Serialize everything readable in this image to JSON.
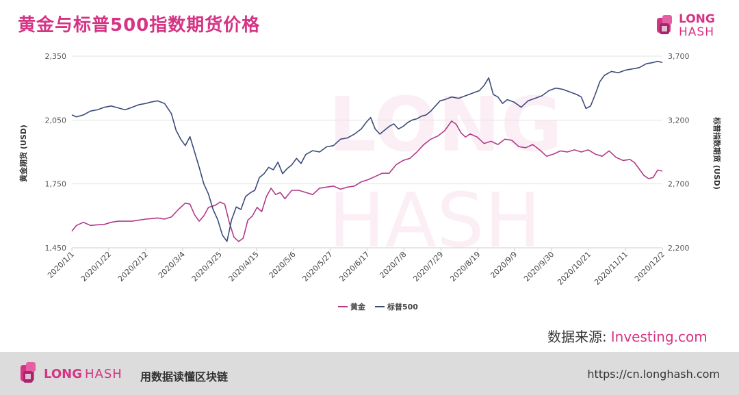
{
  "header": {
    "title": "黄金与标普500指数期货价格"
  },
  "brand": {
    "long": "LONG",
    "hash": "HASH",
    "tagline": "用数据读懂区块链",
    "url": "https://cn.longhash.com",
    "color": "#d63384"
  },
  "source": {
    "label": "数据来源:",
    "site": "Investing.com"
  },
  "chart_data": {
    "type": "line",
    "ylabel_left": "黄金期货 (USD)",
    "ylabel_right": "标普指数期货 (USD)",
    "y_left": {
      "ticks": [
        "1,450",
        "1,750",
        "2,050",
        "2,350"
      ],
      "lim": [
        1450,
        2350
      ]
    },
    "y_right": {
      "ticks": [
        "2,200",
        "2,700",
        "3,200",
        "3,700"
      ],
      "lim": [
        2200,
        3700
      ]
    },
    "x_ticks": [
      "2020/1/1",
      "2020/1/22",
      "2020/2/12",
      "2020/3/4",
      "2020/3/25",
      "2020/4/15",
      "2020/5/6",
      "2020/5/27",
      "2020/6/17",
      "2020/7/8",
      "2020/7/29",
      "2020/8/19",
      "2020/9/9",
      "2020/9/30",
      "2020/10/21",
      "2020/11/11",
      "2020/12/2"
    ],
    "legend_position": "bottom",
    "grid": true,
    "series": [
      {
        "name": "黄金",
        "axis": "left",
        "color": "#b03a88",
        "points": [
          [
            0,
            1528
          ],
          [
            2,
            1555
          ],
          [
            5,
            1570
          ],
          [
            8,
            1555
          ],
          [
            11,
            1558
          ],
          [
            14,
            1560
          ],
          [
            17,
            1570
          ],
          [
            20,
            1575
          ],
          [
            23,
            1575
          ],
          [
            26,
            1575
          ],
          [
            29,
            1580
          ],
          [
            32,
            1585
          ],
          [
            34,
            1587
          ],
          [
            37,
            1590
          ],
          [
            40,
            1585
          ],
          [
            43,
            1595
          ],
          [
            46,
            1630
          ],
          [
            49,
            1660
          ],
          [
            51,
            1655
          ],
          [
            53,
            1605
          ],
          [
            55,
            1575
          ],
          [
            57,
            1600
          ],
          [
            59,
            1640
          ],
          [
            62,
            1650
          ],
          [
            64,
            1665
          ],
          [
            66,
            1655
          ],
          [
            68,
            1570
          ],
          [
            70,
            1500
          ],
          [
            72,
            1480
          ],
          [
            74,
            1495
          ],
          [
            76,
            1580
          ],
          [
            78,
            1600
          ],
          [
            80,
            1640
          ],
          [
            82,
            1620
          ],
          [
            84,
            1690
          ],
          [
            86,
            1730
          ],
          [
            88,
            1700
          ],
          [
            90,
            1710
          ],
          [
            92,
            1680
          ],
          [
            95,
            1720
          ],
          [
            98,
            1720
          ],
          [
            101,
            1710
          ],
          [
            104,
            1700
          ],
          [
            107,
            1730
          ],
          [
            110,
            1735
          ],
          [
            113,
            1740
          ],
          [
            116,
            1725
          ],
          [
            119,
            1735
          ],
          [
            122,
            1740
          ],
          [
            125,
            1760
          ],
          [
            128,
            1770
          ],
          [
            131,
            1785
          ],
          [
            134,
            1800
          ],
          [
            137,
            1800
          ],
          [
            140,
            1840
          ],
          [
            143,
            1860
          ],
          [
            146,
            1870
          ],
          [
            149,
            1900
          ],
          [
            152,
            1935
          ],
          [
            155,
            1960
          ],
          [
            158,
            1975
          ],
          [
            161,
            2000
          ],
          [
            164,
            2045
          ],
          [
            166,
            2030
          ],
          [
            168,
            1990
          ],
          [
            170,
            1970
          ],
          [
            172,
            1985
          ],
          [
            175,
            1970
          ],
          [
            178,
            1940
          ],
          [
            181,
            1950
          ],
          [
            184,
            1935
          ],
          [
            187,
            1960
          ],
          [
            190,
            1955
          ],
          [
            193,
            1925
          ],
          [
            196,
            1920
          ],
          [
            199,
            1935
          ],
          [
            202,
            1910
          ],
          [
            205,
            1880
          ],
          [
            208,
            1890
          ],
          [
            211,
            1905
          ],
          [
            214,
            1900
          ],
          [
            217,
            1910
          ],
          [
            220,
            1900
          ],
          [
            223,
            1910
          ],
          [
            226,
            1890
          ],
          [
            229,
            1880
          ],
          [
            232,
            1905
          ],
          [
            235,
            1875
          ],
          [
            238,
            1860
          ],
          [
            241,
            1865
          ],
          [
            243,
            1850
          ],
          [
            245,
            1820
          ],
          [
            247,
            1790
          ],
          [
            249,
            1775
          ],
          [
            251,
            1780
          ],
          [
            253,
            1815
          ],
          [
            255,
            1810
          ]
        ]
      },
      {
        "name": "标普500",
        "axis": "right",
        "color": "#3b4a7a",
        "points": [
          [
            0,
            3240
          ],
          [
            2,
            3225
          ],
          [
            5,
            3240
          ],
          [
            8,
            3270
          ],
          [
            11,
            3280
          ],
          [
            14,
            3300
          ],
          [
            17,
            3310
          ],
          [
            20,
            3295
          ],
          [
            23,
            3280
          ],
          [
            26,
            3300
          ],
          [
            29,
            3320
          ],
          [
            32,
            3330
          ],
          [
            34,
            3340
          ],
          [
            37,
            3350
          ],
          [
            40,
            3330
          ],
          [
            43,
            3250
          ],
          [
            45,
            3120
          ],
          [
            47,
            3050
          ],
          [
            49,
            3000
          ],
          [
            51,
            3070
          ],
          [
            53,
            2950
          ],
          [
            55,
            2830
          ],
          [
            57,
            2700
          ],
          [
            59,
            2620
          ],
          [
            61,
            2500
          ],
          [
            63,
            2420
          ],
          [
            65,
            2300
          ],
          [
            67,
            2250
          ],
          [
            69,
            2420
          ],
          [
            71,
            2520
          ],
          [
            73,
            2500
          ],
          [
            75,
            2600
          ],
          [
            77,
            2630
          ],
          [
            79,
            2650
          ],
          [
            81,
            2750
          ],
          [
            83,
            2780
          ],
          [
            85,
            2830
          ],
          [
            87,
            2810
          ],
          [
            89,
            2870
          ],
          [
            91,
            2780
          ],
          [
            93,
            2820
          ],
          [
            95,
            2850
          ],
          [
            97,
            2900
          ],
          [
            99,
            2860
          ],
          [
            101,
            2930
          ],
          [
            104,
            2960
          ],
          [
            107,
            2950
          ],
          [
            110,
            2990
          ],
          [
            113,
            3000
          ],
          [
            116,
            3050
          ],
          [
            119,
            3060
          ],
          [
            122,
            3090
          ],
          [
            125,
            3130
          ],
          [
            127,
            3180
          ],
          [
            129,
            3220
          ],
          [
            131,
            3130
          ],
          [
            133,
            3090
          ],
          [
            135,
            3120
          ],
          [
            137,
            3150
          ],
          [
            139,
            3170
          ],
          [
            141,
            3130
          ],
          [
            143,
            3150
          ],
          [
            145,
            3180
          ],
          [
            147,
            3200
          ],
          [
            149,
            3210
          ],
          [
            151,
            3230
          ],
          [
            153,
            3240
          ],
          [
            155,
            3270
          ],
          [
            157,
            3310
          ],
          [
            159,
            3350
          ],
          [
            161,
            3360
          ],
          [
            164,
            3380
          ],
          [
            167,
            3370
          ],
          [
            170,
            3390
          ],
          [
            173,
            3410
          ],
          [
            176,
            3430
          ],
          [
            178,
            3470
          ],
          [
            180,
            3530
          ],
          [
            182,
            3400
          ],
          [
            184,
            3380
          ],
          [
            186,
            3330
          ],
          [
            188,
            3360
          ],
          [
            191,
            3340
          ],
          [
            194,
            3300
          ],
          [
            197,
            3350
          ],
          [
            200,
            3370
          ],
          [
            203,
            3390
          ],
          [
            206,
            3430
          ],
          [
            209,
            3450
          ],
          [
            212,
            3440
          ],
          [
            215,
            3420
          ],
          [
            218,
            3400
          ],
          [
            220,
            3380
          ],
          [
            222,
            3290
          ],
          [
            224,
            3310
          ],
          [
            226,
            3400
          ],
          [
            228,
            3500
          ],
          [
            230,
            3550
          ],
          [
            233,
            3580
          ],
          [
            236,
            3570
          ],
          [
            239,
            3590
          ],
          [
            242,
            3600
          ],
          [
            245,
            3610
          ],
          [
            248,
            3640
          ],
          [
            251,
            3650
          ],
          [
            253,
            3660
          ],
          [
            255,
            3650
          ]
        ]
      }
    ]
  }
}
